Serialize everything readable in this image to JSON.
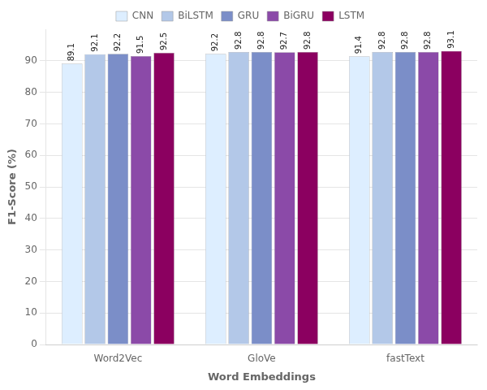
{
  "chart_data": {
    "type": "bar",
    "xlabel": "Word Embeddings",
    "ylabel": "F1-Score (%)",
    "categories": [
      "Word2Vec",
      "GloVe",
      "fastText"
    ],
    "series": [
      {
        "name": "CNN",
        "color": "#ddeeff",
        "values": [
          89.1,
          92.2,
          91.4
        ]
      },
      {
        "name": "BiLSTM",
        "color": "#b3c8e8",
        "values": [
          92.1,
          92.8,
          92.8
        ]
      },
      {
        "name": "GRU",
        "color": "#7b8ec8",
        "values": [
          92.2,
          92.8,
          92.8
        ]
      },
      {
        "name": "BiGRU",
        "color": "#8b4aa8",
        "values": [
          91.5,
          92.7,
          92.8
        ]
      },
      {
        "name": "LSTM",
        "color": "#8b0060",
        "values": [
          92.5,
          92.8,
          93.1
        ]
      }
    ],
    "ylim": [
      0,
      100
    ],
    "yticks": [
      0,
      10,
      20,
      30,
      40,
      50,
      60,
      70,
      80,
      90
    ],
    "grid": true,
    "legend": "top",
    "data_labels": true
  }
}
